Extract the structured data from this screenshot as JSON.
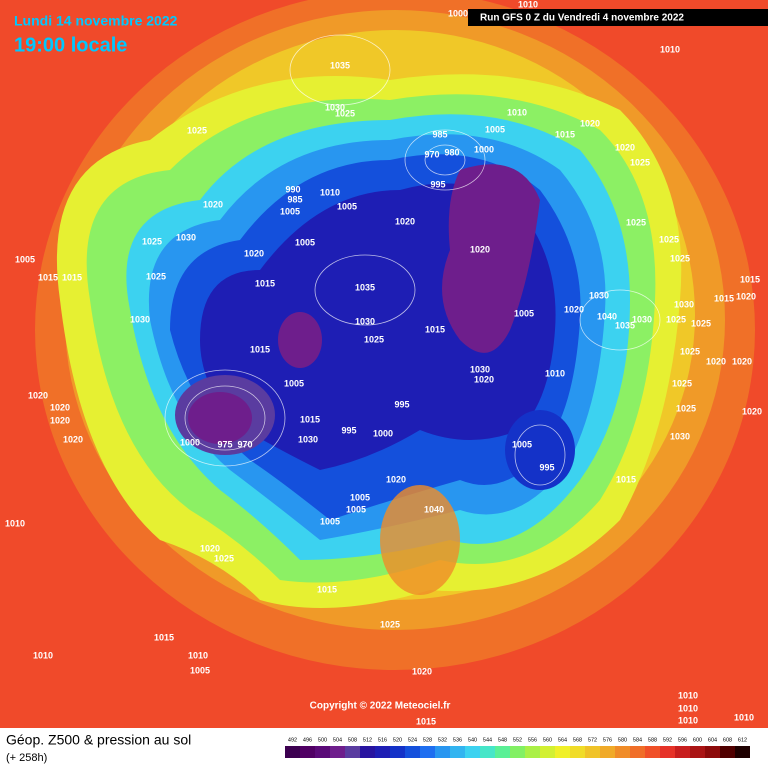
{
  "header": {
    "date": "Lundi 14 novembre 2022",
    "time": "19:00 locale",
    "run": "Run GFS 0 Z du Vendredi 4 novembre 2022"
  },
  "copyright": "Copyright © 2022 Meteociel.fr",
  "footer": {
    "title": "Géop. Z500 & pression au sol",
    "lead": "(+ 258h)"
  },
  "isobars": [
    1010,
    1000,
    1010,
    1035,
    1030,
    1025,
    1010,
    1005,
    985,
    1015,
    1020,
    1020,
    1025,
    970,
    980,
    1000,
    995,
    1025,
    990,
    985,
    1010,
    1020,
    1005,
    1005,
    1020,
    1025,
    1005,
    1030,
    1025,
    1020,
    1025,
    1005,
    1015,
    1015,
    1020,
    1025,
    1015,
    1035,
    1025,
    1030,
    1015,
    1015,
    1020,
    1030,
    1030,
    1005,
    1020,
    1040,
    1035,
    1030,
    1030,
    1025,
    1025,
    1015,
    1025,
    1015,
    1030,
    1020,
    1010,
    1025,
    1020,
    1020,
    1005,
    1025,
    1020,
    1020,
    1020,
    995,
    1015,
    995,
    1000,
    1025,
    1020,
    1030,
    1020,
    1000,
    975,
    970,
    1030,
    1005,
    995,
    1015,
    1020,
    1005,
    1005,
    1040,
    1005,
    1010,
    1020,
    1025,
    1015,
    1025,
    1015,
    1010,
    1010,
    1005,
    1020,
    1015,
    1010,
    1010,
    1010,
    1010
  ],
  "colorbar": {
    "ticks": [
      492,
      496,
      500,
      504,
      508,
      512,
      516,
      520,
      524,
      528,
      532,
      536,
      540,
      544,
      548,
      552,
      556,
      560,
      564,
      568,
      572,
      576,
      580,
      584,
      588,
      592,
      596,
      600,
      604,
      608,
      612
    ],
    "colors": [
      "#3c0050",
      "#500064",
      "#5a0a78",
      "#6e1e8c",
      "#5a3ca0",
      "#2814a0",
      "#1e1eb4",
      "#1432c8",
      "#1450dc",
      "#1e6ef0",
      "#2896f0",
      "#32b4f0",
      "#3cd2f0",
      "#46e6c8",
      "#5af096",
      "#82f064",
      "#aaf046",
      "#d2f032",
      "#f0f028",
      "#f0dc28",
      "#f0c328",
      "#f0aa28",
      "#f08c28",
      "#f06e28",
      "#f05028",
      "#e63228",
      "#c81e1e",
      "#aa1414",
      "#8c0a0a",
      "#500000",
      "#1e0000"
    ]
  }
}
